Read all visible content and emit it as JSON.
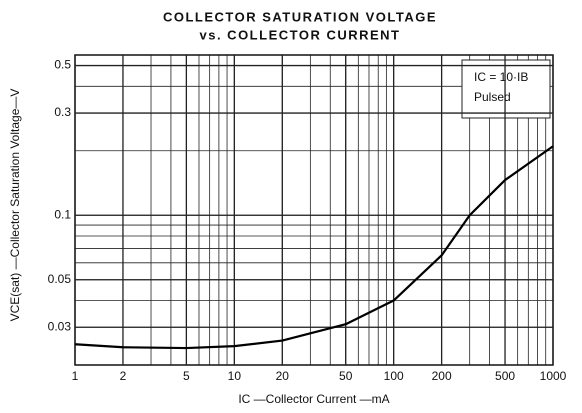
{
  "chart_data": {
    "type": "line",
    "title": "COLLECTOR SATURATION VOLTAGE",
    "subtitle": "vs. COLLECTOR CURRENT",
    "xlabel": "IC —Collector Current —mA",
    "ylabel": "VCE(sat) —Collector Saturation Voltage—V",
    "annotations": [
      "IC = 10·IB",
      "Pulsed"
    ],
    "x": [
      1,
      2,
      5,
      10,
      20,
      50,
      100,
      200,
      300,
      500,
      1000
    ],
    "series": [
      {
        "name": "VCE(sat)",
        "color": "#000000",
        "values": [
          0.025,
          0.0242,
          0.024,
          0.0245,
          0.026,
          0.031,
          0.04,
          0.065,
          0.1,
          0.146,
          0.21
        ]
      }
    ],
    "xlim": [
      1,
      1000
    ],
    "ylim": [
      0.02,
      0.56
    ],
    "xticks": [
      1,
      2,
      5,
      10,
      20,
      50,
      100,
      200,
      500,
      1000
    ],
    "yticks": [
      0.03,
      0.05,
      0.1,
      0.3,
      0.5
    ],
    "xscale": "log",
    "yscale": "log",
    "grid": true,
    "minor_grid": true
  }
}
